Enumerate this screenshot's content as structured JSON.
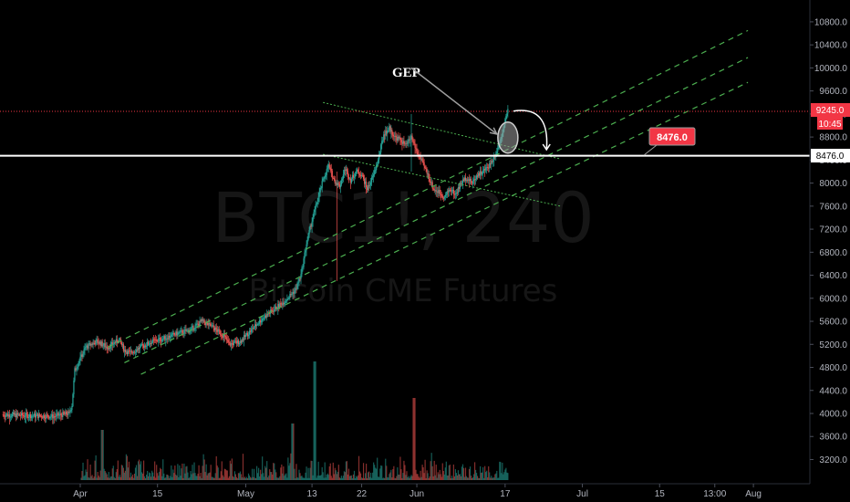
{
  "chart_data": {
    "type": "candlestick",
    "watermark": {
      "symbol": "BTC1!, 240",
      "name": "Bitcoin CME Futures"
    },
    "y_axis": {
      "min": 2950,
      "max": 11150,
      "ticks": [
        "3200.0",
        "3600.0",
        "4000.0",
        "4400.0",
        "4800.0",
        "5200.0",
        "5600.0",
        "6000.0",
        "6400.0",
        "6800.0",
        "7200.0",
        "7600.0",
        "8000.0",
        "8400.0",
        "8800.0",
        "9200.0",
        "9600.0",
        "10000.0",
        "10400.0",
        "10800.0"
      ]
    },
    "x_axis": {
      "ticks": [
        {
          "label": "Apr",
          "day": 0
        },
        {
          "label": "15",
          "day": 14
        },
        {
          "label": "May",
          "day": 30
        },
        {
          "label": "13",
          "day": 42
        },
        {
          "label": "22",
          "day": 51
        },
        {
          "label": "Jun",
          "day": 61
        },
        {
          "label": "17",
          "day": 77
        },
        {
          "label": "Jul",
          "day": 91
        },
        {
          "label": "15",
          "day": 105
        },
        {
          "label": "13:00",
          "day": 115
        },
        {
          "label": "Aug",
          "day": 122
        }
      ]
    },
    "price_path": [
      [
        -14,
        3980
      ],
      [
        -5,
        3950
      ],
      [
        -2,
        4000
      ],
      [
        -1.5,
        4150
      ],
      [
        -1,
        4750
      ],
      [
        0,
        4950
      ],
      [
        1,
        5150
      ],
      [
        3,
        5250
      ],
      [
        5,
        5150
      ],
      [
        7,
        5280
      ],
      [
        8,
        5100
      ],
      [
        9,
        5050
      ],
      [
        11,
        5150
      ],
      [
        13,
        5250
      ],
      [
        15,
        5300
      ],
      [
        18,
        5400
      ],
      [
        20,
        5450
      ],
      [
        22,
        5600
      ],
      [
        24,
        5500
      ],
      [
        26,
        5350
      ],
      [
        27,
        5200
      ],
      [
        29,
        5250
      ],
      [
        31,
        5450
      ],
      [
        33,
        5650
      ],
      [
        35,
        5800
      ],
      [
        37,
        5950
      ],
      [
        39,
        6150
      ],
      [
        40,
        6400
      ],
      [
        41,
        6950
      ],
      [
        42,
        7350
      ],
      [
        43,
        7700
      ],
      [
        44,
        8050
      ],
      [
        45,
        8300
      ],
      [
        46,
        8050
      ],
      [
        47,
        7950
      ],
      [
        48,
        8250
      ],
      [
        49,
        8050
      ],
      [
        50,
        8200
      ],
      [
        51,
        8150
      ],
      [
        52,
        7900
      ],
      [
        53,
        8100
      ],
      [
        54,
        8400
      ],
      [
        55,
        8850
      ],
      [
        56,
        8950
      ],
      [
        57,
        8800
      ],
      [
        58,
        8750
      ],
      [
        59,
        8650
      ],
      [
        60,
        8800
      ],
      [
        61,
        8550
      ],
      [
        62,
        8350
      ],
      [
        63,
        8150
      ],
      [
        64,
        7900
      ],
      [
        65,
        7850
      ],
      [
        66,
        7750
      ],
      [
        67,
        7900
      ],
      [
        68,
        7800
      ],
      [
        69,
        8000
      ],
      [
        70,
        8100
      ],
      [
        71,
        8000
      ],
      [
        72,
        8150
      ],
      [
        73,
        8200
      ],
      [
        74,
        8300
      ],
      [
        75,
        8450
      ],
      [
        76,
        8700
      ],
      [
        77,
        9100
      ],
      [
        77.5,
        9245
      ]
    ],
    "spikes": [
      {
        "day": 46.5,
        "low": 6300,
        "high": 8200
      },
      {
        "day": 60,
        "low": 8200,
        "high": 9200
      }
    ],
    "channel_up": {
      "color": "#4caf50",
      "lines": [
        {
          "x1": 5,
          "y1": 5150,
          "x2": 121,
          "y2": 10650
        },
        {
          "x1": 8,
          "y1": 4880,
          "x2": 121,
          "y2": 10180
        },
        {
          "x1": 11,
          "y1": 4680,
          "x2": 121,
          "y2": 9750
        }
      ]
    },
    "channel_down": {
      "color": "#4caf50",
      "lines": [
        {
          "x1": 44,
          "y1": 9400,
          "x2": 87,
          "y2": 8420
        },
        {
          "x1": 44,
          "y1": 8500,
          "x2": 87,
          "y2": 7600
        }
      ]
    },
    "horizontal_levels": [
      {
        "price": 8476.0,
        "label": "8476.0",
        "color": "#ffffff"
      },
      {
        "price": 9245.0,
        "label": "9245.0",
        "color": "#f23645"
      }
    ],
    "price_labels": {
      "current": "9245.0",
      "countdown": "10:45",
      "level": "8476.0"
    },
    "annotations": {
      "gap_text": "GEP",
      "callout": "8476.0",
      "ellipse": {
        "day": 77.5,
        "price": 8790
      },
      "arrow_from": {
        "day": 60,
        "price": 10000
      },
      "arrow_to": {
        "day": 75.5,
        "price": 8850
      },
      "curve_arrow": [
        [
          78.5,
          9250
        ],
        [
          83.5,
          9000
        ],
        [
          84.5,
          8580
        ]
      ]
    }
  }
}
